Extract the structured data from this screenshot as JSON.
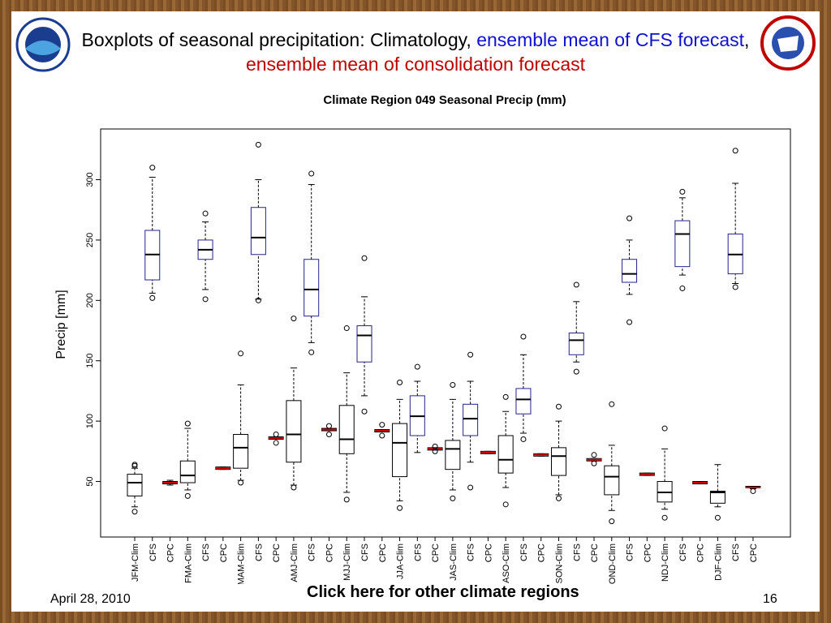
{
  "header": {
    "title": [
      {
        "text": "Boxplots of seasonal precipitation: Climatology, ",
        "color": "#000000"
      },
      {
        "text": "ensemble mean of CFS forecast",
        "color": "#1010d0"
      },
      {
        "text": ", ",
        "color": "#000000"
      },
      {
        "text": "ensemble mean of consolidation forecast",
        "color": "#c00000"
      }
    ]
  },
  "chart_data": {
    "type": "boxplot",
    "title": "Climate Region 049 Seasonal Precip (mm)",
    "ylabel": "Precip [mm]",
    "ylim": [
      4,
      342
    ],
    "yticks": [
      50,
      100,
      150,
      200,
      250,
      300
    ],
    "box_colors": [
      "#000000",
      "#23238e",
      "#000000"
    ],
    "median_colors": [
      "#000000",
      "#000000",
      "#cc0000"
    ],
    "categories": [
      "JFM-Clim",
      "CFS",
      "CPC",
      "FMA-Clim",
      "CFS",
      "CPC",
      "MAM-Clim",
      "CFS",
      "CPC",
      "AMJ-Clim",
      "CFS",
      "CPC",
      "MJJ-Clim",
      "CFS",
      "CPC",
      "JJA-Clim",
      "CFS",
      "CPC",
      "JAS-Clim",
      "CFS",
      "CPC",
      "ASO-Clim",
      "CFS",
      "CPC",
      "SON-Clim",
      "CFS",
      "CPC",
      "OND-Clim",
      "CFS",
      "CPC",
      "NDJ-Clim",
      "CFS",
      "CPC",
      "DJF-Clim",
      "CFS",
      "CPC"
    ],
    "boxes": [
      {
        "min": 29,
        "q1": 38,
        "median": 49,
        "q3": 56,
        "max": 61,
        "outliers": [
          25,
          63,
          64
        ]
      },
      {
        "min": 206,
        "q1": 217,
        "median": 238,
        "q3": 258,
        "max": 302,
        "outliers": [
          202,
          310
        ]
      },
      {
        "min": 47,
        "q1": 48,
        "median": 49,
        "q3": 50,
        "max": 51,
        "outliers": []
      },
      {
        "min": 43,
        "q1": 49,
        "median": 55,
        "q3": 67,
        "max": 94,
        "outliers": [
          38,
          98
        ]
      },
      {
        "min": 209,
        "q1": 234,
        "median": 242,
        "q3": 250,
        "max": 265,
        "outliers": [
          201,
          272
        ]
      },
      {
        "min": 60,
        "q1": 60,
        "median": 61,
        "q3": 62,
        "max": 62,
        "outliers": []
      },
      {
        "min": 51,
        "q1": 61,
        "median": 78,
        "q3": 89,
        "max": 130,
        "outliers": [
          49,
          156
        ]
      },
      {
        "min": 201,
        "q1": 238,
        "median": 252,
        "q3": 277,
        "max": 300,
        "outliers": [
          200,
          329
        ]
      },
      {
        "min": 85,
        "q1": 85,
        "median": 86,
        "q3": 87,
        "max": 87,
        "outliers": [
          82,
          89
        ]
      },
      {
        "min": 47,
        "q1": 66,
        "median": 89,
        "q3": 117,
        "max": 144,
        "outliers": [
          45,
          185
        ]
      },
      {
        "min": 165,
        "q1": 187,
        "median": 209,
        "q3": 234,
        "max": 296,
        "outliers": [
          157,
          305
        ]
      },
      {
        "min": 92,
        "q1": 92,
        "median": 93,
        "q3": 94,
        "max": 94,
        "outliers": [
          89,
          96
        ]
      },
      {
        "min": 41,
        "q1": 73,
        "median": 85,
        "q3": 113,
        "max": 140,
        "outliers": [
          35,
          177
        ]
      },
      {
        "min": 121,
        "q1": 149,
        "median": 171,
        "q3": 179,
        "max": 203,
        "outliers": [
          108,
          235
        ]
      },
      {
        "min": 91,
        "q1": 91,
        "median": 92,
        "q3": 93,
        "max": 93,
        "outliers": [
          88,
          97
        ]
      },
      {
        "min": 34,
        "q1": 54,
        "median": 82,
        "q3": 98,
        "max": 118,
        "outliers": [
          28,
          132
        ]
      },
      {
        "min": 74,
        "q1": 88,
        "median": 104,
        "q3": 121,
        "max": 133,
        "outliers": [
          145
        ]
      },
      {
        "min": 76,
        "q1": 76,
        "median": 77,
        "q3": 78,
        "max": 78,
        "outliers": [
          75,
          79
        ]
      },
      {
        "min": 43,
        "q1": 60,
        "median": 77,
        "q3": 84,
        "max": 118,
        "outliers": [
          36,
          130
        ]
      },
      {
        "min": 66,
        "q1": 88,
        "median": 102,
        "q3": 114,
        "max": 133,
        "outliers": [
          45,
          155
        ]
      },
      {
        "min": 73,
        "q1": 73,
        "median": 74,
        "q3": 75,
        "max": 75,
        "outliers": []
      },
      {
        "min": 45,
        "q1": 57,
        "median": 68,
        "q3": 88,
        "max": 108,
        "outliers": [
          31,
          120
        ]
      },
      {
        "min": 90,
        "q1": 106,
        "median": 118,
        "q3": 127,
        "max": 155,
        "outliers": [
          85,
          170
        ]
      },
      {
        "min": 71,
        "q1": 71,
        "median": 72,
        "q3": 73,
        "max": 73,
        "outliers": []
      },
      {
        "min": 39,
        "q1": 55,
        "median": 71,
        "q3": 78,
        "max": 100,
        "outliers": [
          36,
          112
        ]
      },
      {
        "min": 149,
        "q1": 155,
        "median": 167,
        "q3": 173,
        "max": 199,
        "outliers": [
          141,
          213
        ]
      },
      {
        "min": 67,
        "q1": 67,
        "median": 68,
        "q3": 69,
        "max": 69,
        "outliers": [
          65,
          72
        ]
      },
      {
        "min": 26,
        "q1": 39,
        "median": 54,
        "q3": 63,
        "max": 80,
        "outliers": [
          17,
          114
        ]
      },
      {
        "min": 205,
        "q1": 215,
        "median": 222,
        "q3": 234,
        "max": 250,
        "outliers": [
          182,
          268
        ]
      },
      {
        "min": 55,
        "q1": 55,
        "median": 56,
        "q3": 57,
        "max": 57,
        "outliers": []
      },
      {
        "min": 27,
        "q1": 33,
        "median": 41,
        "q3": 50,
        "max": 77,
        "outliers": [
          20,
          94
        ]
      },
      {
        "min": 221,
        "q1": 228,
        "median": 255,
        "q3": 266,
        "max": 285,
        "outliers": [
          210,
          290
        ]
      },
      {
        "min": 48,
        "q1": 48,
        "median": 49,
        "q3": 50,
        "max": 50,
        "outliers": []
      },
      {
        "min": 29,
        "q1": 32,
        "median": 41,
        "q3": 42,
        "max": 64,
        "outliers": [
          20
        ]
      },
      {
        "min": 214,
        "q1": 222,
        "median": 238,
        "q3": 255,
        "max": 297,
        "outliers": [
          211,
          324
        ]
      },
      {
        "min": 44,
        "q1": 45,
        "median": 45,
        "q3": 46,
        "max": 46,
        "outliers": [
          42
        ]
      }
    ]
  },
  "footer": {
    "date": "April 28, 2010",
    "link": "Click here for other climate regions",
    "page": "16"
  }
}
